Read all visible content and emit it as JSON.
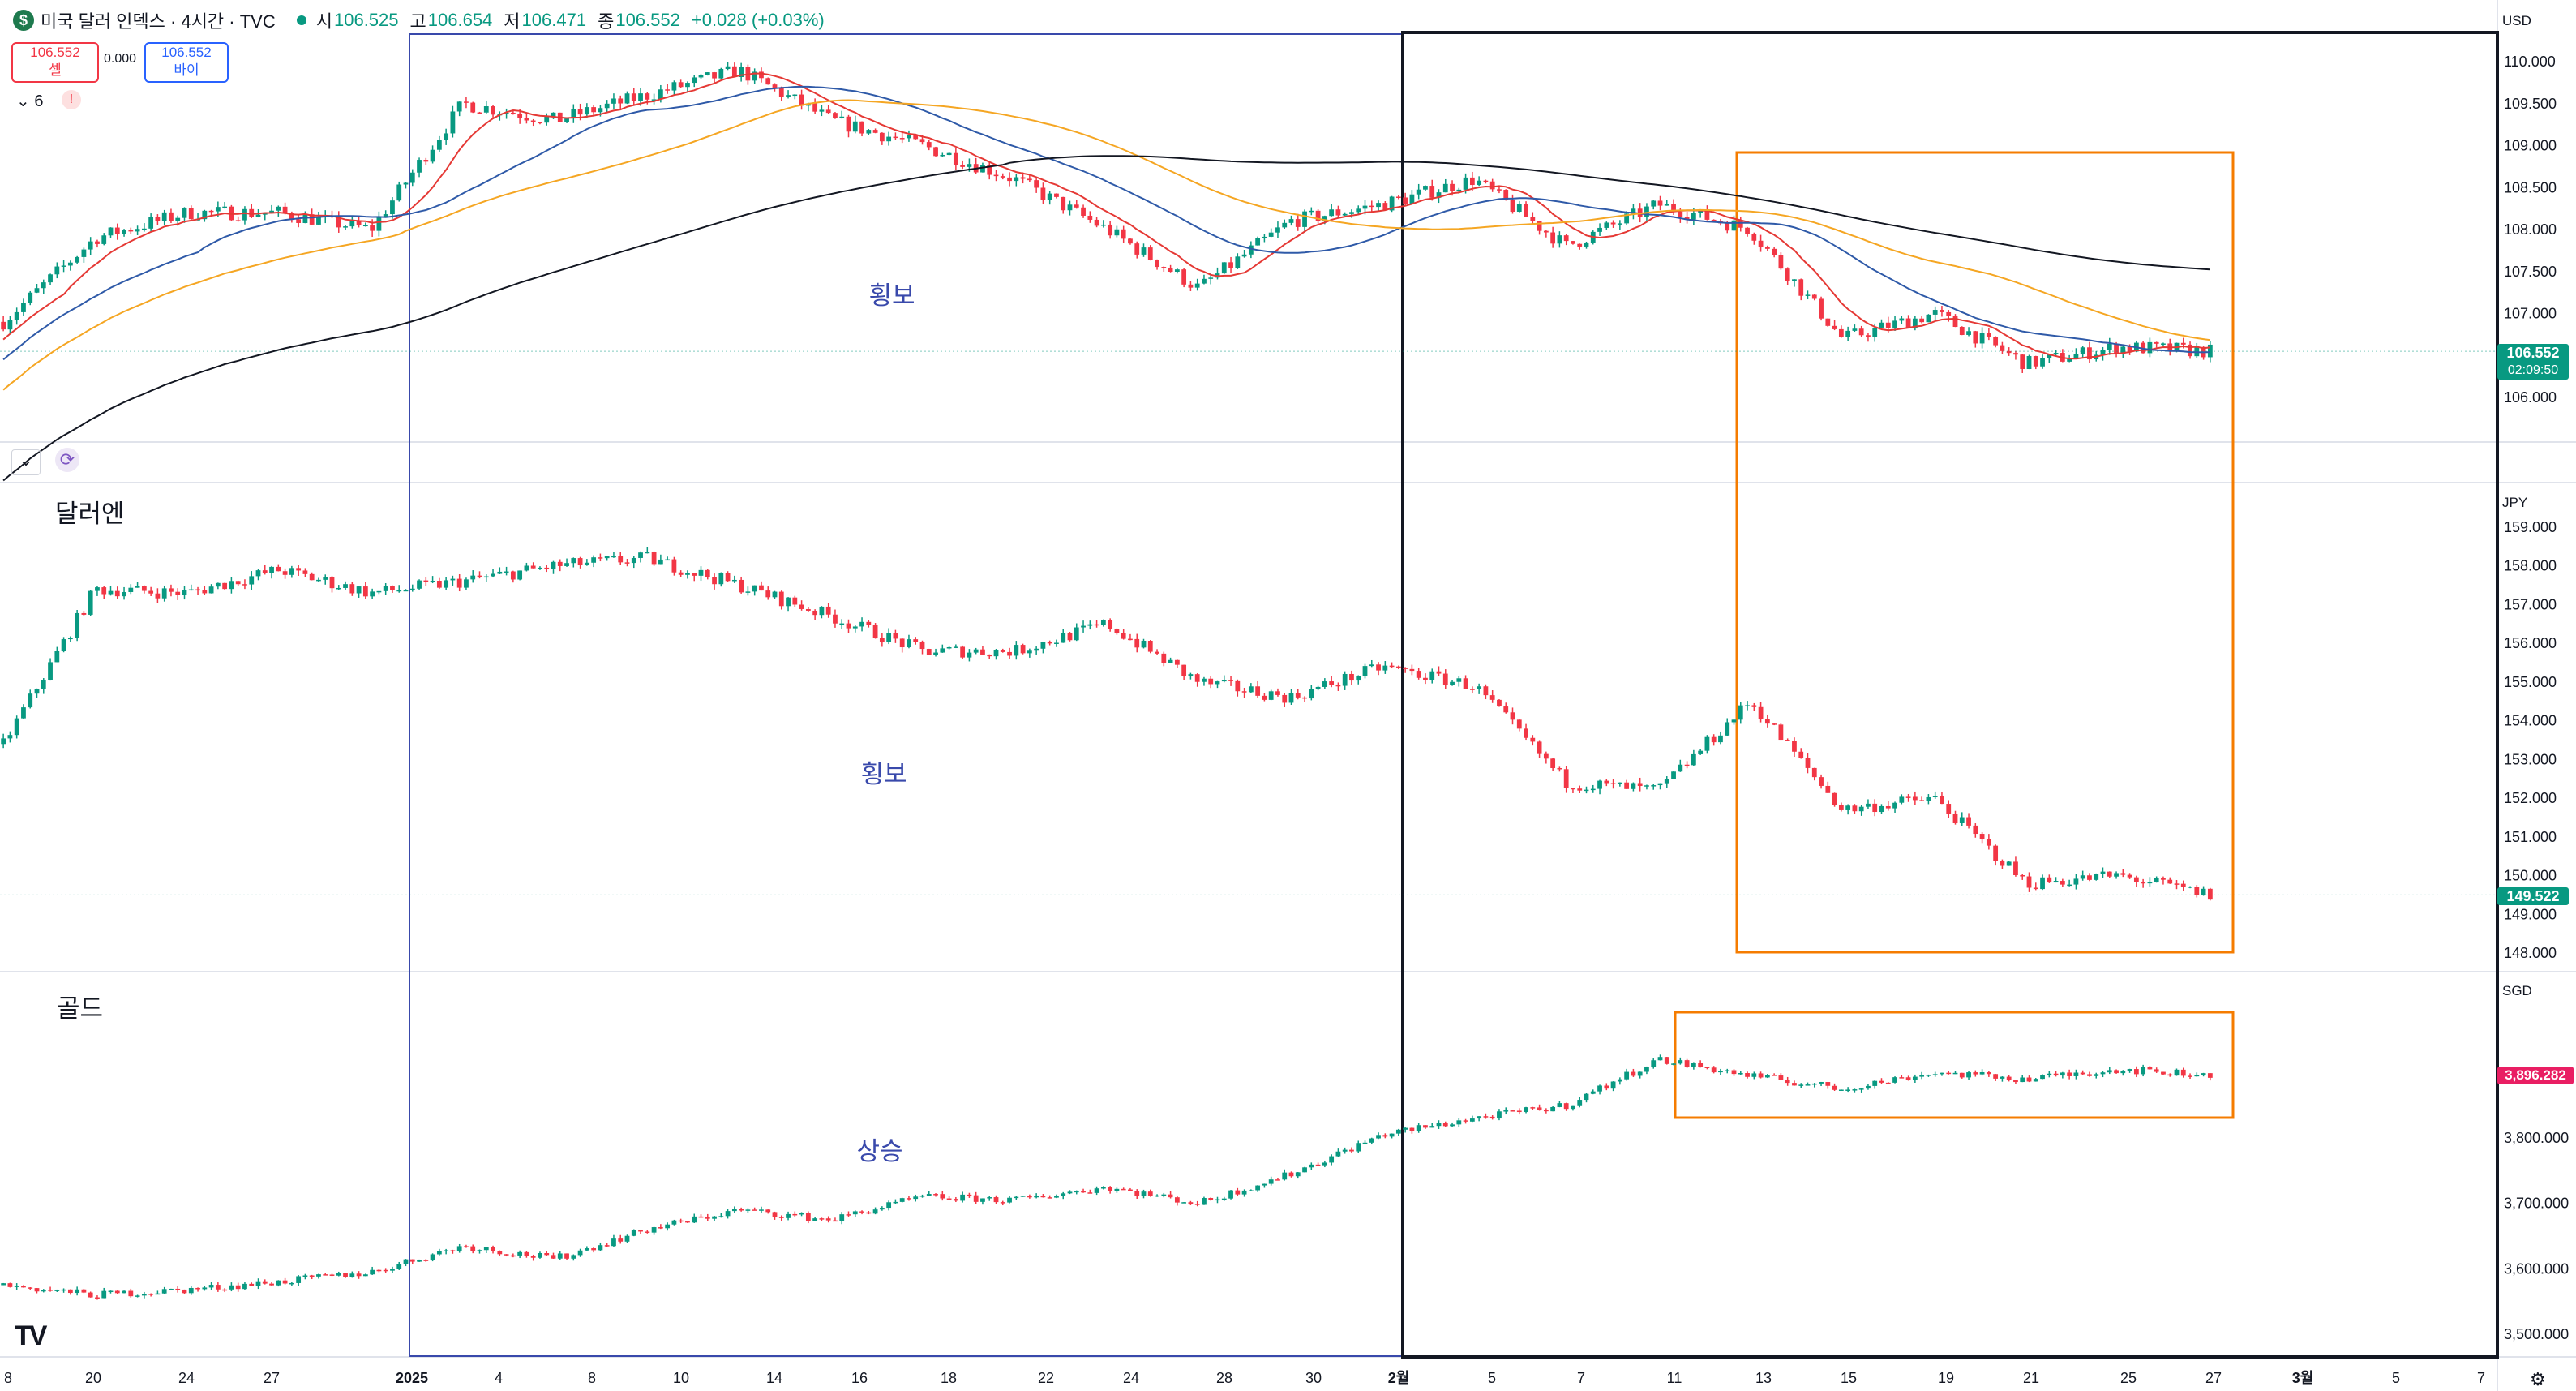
{
  "header": {
    "symbol": "미국 달러 인덱스 · 4시간 · TVC",
    "open_label": "시",
    "open": "106.525",
    "high_label": "고",
    "high": "106.654",
    "low_label": "저",
    "low": "106.471",
    "close_label": "종",
    "close": "106.552",
    "change": "+0.028 (+0.03%)"
  },
  "trade": {
    "sell_price": "106.552",
    "sell_label": "셀",
    "spread": "0.000",
    "buy_price": "106.552",
    "buy_label": "바이"
  },
  "indicators": {
    "count": "6",
    "alert": "!"
  },
  "panes": {
    "dxy": {
      "unit": "USD",
      "current_price": "106.552",
      "countdown": "02:09:50",
      "annotation": "횡보"
    },
    "usdjpy": {
      "title": "달러엔",
      "unit": "JPY",
      "current_price": "149.522",
      "annotation": "횡보"
    },
    "gold": {
      "title": "골드",
      "unit": "SGD",
      "current_price": "3,896.282",
      "annotation": "상승"
    }
  },
  "colors": {
    "up": "#089981",
    "down": "#f23645",
    "blue_box": "#3949ab",
    "black_box": "#131722",
    "orange_box": "#f57c00",
    "ma_red": "#e53935",
    "ma_blue": "#2f5aa8",
    "ma_orange": "#f5a623",
    "ma_black": "#131722"
  },
  "chart_data": [
    {
      "type": "line",
      "title": "미국 달러 인덱스 · 4시간 · TVC",
      "x": [
        "12/18",
        "12/20",
        "12/24",
        "12/27",
        "01/02",
        "01/04",
        "01/08",
        "01/10",
        "01/14",
        "01/16",
        "01/18",
        "01/22",
        "01/24",
        "01/28",
        "01/30",
        "02/02",
        "02/05",
        "02/07",
        "02/11",
        "02/13",
        "02/15",
        "02/19",
        "02/21",
        "02/25",
        "02/27"
      ],
      "series": [
        {
          "values": [
            106.9,
            107.9,
            108.2,
            108.2,
            108.0,
            109.5,
            109.3,
            109.6,
            109.9,
            109.3,
            109.0,
            108.6,
            108.0,
            107.3,
            108.1,
            108.3,
            108.6,
            107.8,
            108.3,
            108.0,
            106.7,
            107.0,
            106.4,
            106.6,
            106.55
          ]
        }
      ],
      "ylim": [
        106.0,
        110.0
      ],
      "y_ticks": [
        "110.000",
        "109.500",
        "109.000",
        "108.500",
        "108.000",
        "107.500",
        "107.000",
        "106.500",
        "106.000"
      ]
    },
    {
      "type": "line",
      "title": "달러엔",
      "x": [
        "12/18",
        "12/20",
        "12/24",
        "12/27",
        "01/02",
        "01/04",
        "01/08",
        "01/10",
        "01/14",
        "01/16",
        "01/18",
        "01/22",
        "01/24",
        "01/28",
        "01/30",
        "02/02",
        "02/05",
        "02/07",
        "02/11",
        "02/13",
        "02/15",
        "02/19",
        "02/21",
        "02/25",
        "02/27"
      ],
      "series": [
        {
          "values": [
            153.4,
            157.4,
            157.3,
            157.9,
            157.3,
            157.6,
            158.0,
            158.2,
            157.5,
            156.7,
            155.8,
            155.8,
            156.5,
            155.0,
            154.6,
            155.4,
            154.9,
            152.4,
            152.2,
            154.5,
            151.7,
            152.0,
            149.8,
            150.0,
            149.5
          ]
        }
      ],
      "ylim": [
        148.0,
        159.0
      ],
      "y_ticks": [
        "159.000",
        "158.000",
        "157.000",
        "156.000",
        "155.000",
        "154.000",
        "153.000",
        "152.000",
        "151.000",
        "150.000",
        "149.000",
        "148.000"
      ]
    },
    {
      "type": "line",
      "title": "골드",
      "x": [
        "12/18",
        "12/20",
        "12/24",
        "12/27",
        "01/02",
        "01/04",
        "01/08",
        "01/10",
        "01/14",
        "01/16",
        "01/18",
        "01/22",
        "01/24",
        "01/28",
        "01/30",
        "02/02",
        "02/05",
        "02/07",
        "02/11",
        "02/13",
        "02/15",
        "02/19",
        "02/21",
        "02/25",
        "02/27"
      ],
      "series": [
        {
          "values": [
            3575,
            3560,
            3568,
            3580,
            3595,
            3635,
            3615,
            3660,
            3690,
            3675,
            3710,
            3705,
            3725,
            3700,
            3745,
            3805,
            3830,
            3850,
            3920,
            3895,
            3875,
            3900,
            3890,
            3905,
            3896
          ]
        }
      ],
      "ylim": [
        3500,
        3900
      ],
      "y_ticks": [
        "3,800.000",
        "3,700.000",
        "3,600.000",
        "3,500.000"
      ]
    }
  ],
  "x_axis": {
    "labels": [
      "8",
      "20",
      "24",
      "27",
      "2025",
      "4",
      "8",
      "10",
      "14",
      "16",
      "18",
      "22",
      "24",
      "28",
      "30",
      "2월",
      "5",
      "7",
      "11",
      "13",
      "15",
      "19",
      "21",
      "25",
      "27",
      "3월",
      "5",
      "7"
    ]
  }
}
